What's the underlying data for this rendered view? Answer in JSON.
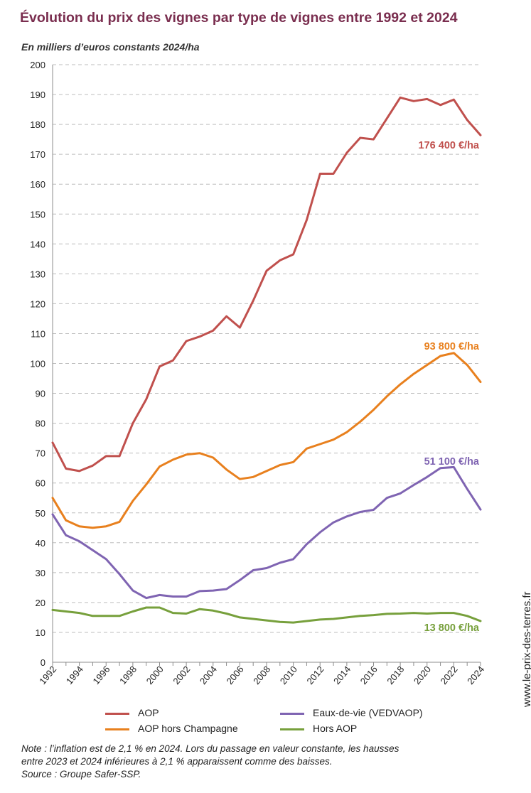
{
  "header": {
    "title": "Évolution du prix des vignes par type de vignes entre 1992 et 2024",
    "subtitle": "En milliers d’euros constants 2024/ha"
  },
  "chart_data": {
    "type": "line",
    "title": "Évolution du prix des vignes par type de vignes entre 1992 et 2024",
    "subtitle": "En milliers d’euros constants 2024/ha",
    "xlabel": "",
    "ylabel": "",
    "xlim": [
      1992,
      2024
    ],
    "ylim": [
      0,
      200
    ],
    "y_ticks": [
      "0",
      "10",
      "20",
      "30",
      "40",
      "50",
      "60",
      "70",
      "80",
      "90",
      "100",
      "110",
      "120",
      "130",
      "140",
      "150",
      "160",
      "170",
      "180",
      "190",
      "200"
    ],
    "x_ticks": [
      "1992",
      "1994",
      "1996",
      "1998",
      "2000",
      "2002",
      "2004",
      "2006",
      "2008",
      "2010",
      "2012",
      "2014",
      "2016",
      "2018",
      "2020",
      "2022",
      "2024"
    ],
    "grid": "horizontal dashed",
    "legend_position": "bottom",
    "x": [
      1992,
      1993,
      1994,
      1995,
      1996,
      1997,
      1998,
      1999,
      2000,
      2001,
      2002,
      2003,
      2004,
      2005,
      2006,
      2007,
      2008,
      2009,
      2010,
      2011,
      2012,
      2013,
      2014,
      2015,
      2016,
      2017,
      2018,
      2019,
      2020,
      2021,
      2022,
      2023,
      2024
    ],
    "series": [
      {
        "name": "AOP",
        "color": "#c0504d",
        "values": [
          73.5,
          64.8,
          64.0,
          65.8,
          69.0,
          69.0,
          80.0,
          88.0,
          99.0,
          101.0,
          107.5,
          109.0,
          111.0,
          115.8,
          112.0,
          121.0,
          131.0,
          134.5,
          136.5,
          148.0,
          163.5,
          163.5,
          170.5,
          175.5,
          175.0,
          182.0,
          189.0,
          187.8,
          188.5,
          186.5,
          188.3,
          181.5,
          176.4
        ],
        "end_label": "176 400 €/ha"
      },
      {
        "name": "AOP hors Champagne",
        "color": "#e8801e",
        "values": [
          55.0,
          47.5,
          45.5,
          45.0,
          45.5,
          47.0,
          54.0,
          59.5,
          65.5,
          67.8,
          69.5,
          70.0,
          68.5,
          64.5,
          61.3,
          62.0,
          64.0,
          66.0,
          67.0,
          71.5,
          73.0,
          74.5,
          77.0,
          80.5,
          84.5,
          89.0,
          93.0,
          96.5,
          99.5,
          102.5,
          103.5,
          99.5,
          93.8
        ],
        "end_label": "93 800 €/ha"
      },
      {
        "name": "Eaux-de-vie (VEDVAOP)",
        "color": "#7f64b2",
        "values": [
          49.5,
          42.5,
          40.5,
          37.5,
          34.5,
          29.5,
          24.0,
          21.5,
          22.5,
          22.0,
          22.0,
          23.8,
          24.0,
          24.5,
          27.5,
          30.8,
          31.5,
          33.3,
          34.5,
          39.5,
          43.5,
          46.8,
          48.8,
          50.3,
          51.0,
          55.0,
          56.5,
          59.3,
          62.0,
          65.0,
          65.3,
          58.0,
          51.1
        ],
        "end_label": "51 100 €/ha"
      },
      {
        "name": "Hors AOP",
        "color": "#77a03c",
        "values": [
          17.5,
          17.0,
          16.5,
          15.5,
          15.5,
          15.5,
          17.0,
          18.3,
          18.3,
          16.5,
          16.3,
          17.8,
          17.3,
          16.3,
          15.0,
          14.5,
          14.0,
          13.5,
          13.3,
          13.8,
          14.3,
          14.5,
          15.0,
          15.5,
          15.8,
          16.2,
          16.3,
          16.5,
          16.3,
          16.5,
          16.5,
          15.5,
          13.8
        ],
        "end_label": "13 800 €/ha"
      }
    ]
  },
  "legend": [
    {
      "label": "AOP",
      "color": "#c0504d"
    },
    {
      "label": "Eaux-de-vie (VEDVAOP)",
      "color": "#7f64b2"
    },
    {
      "label": "AOP hors Champagne",
      "color": "#e8801e"
    },
    {
      "label": "Hors AOP",
      "color": "#77a03c"
    }
  ],
  "footer": {
    "note_line1": "Note : l’inflation est de 2,1 % en 2024. Lors du passage en valeur constante, les hausses",
    "note_line2": "entre 2023 et 2024 inférieures à 2,1 % apparaissent comme des baisses.",
    "source": "Source : Groupe Safer-SSP.",
    "watermark": "www.le-prix-des-terres.fr"
  }
}
